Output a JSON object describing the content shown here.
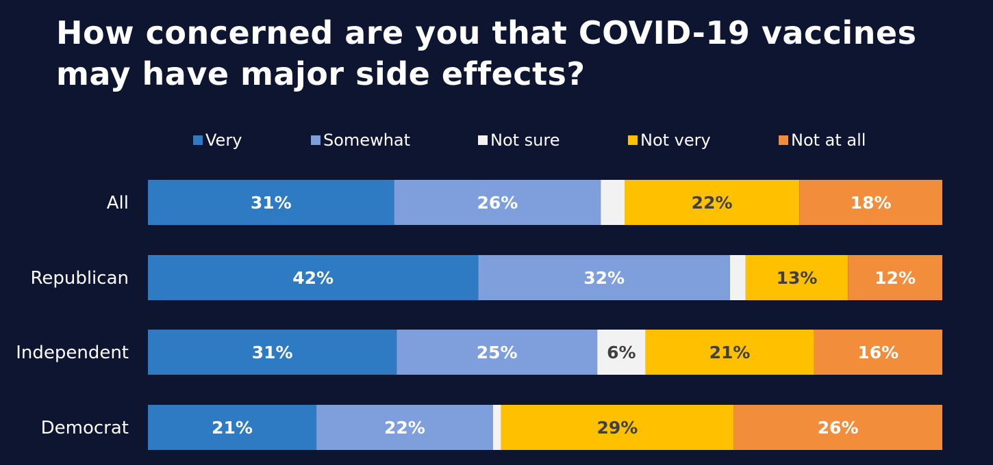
{
  "page": {
    "title_lines": [
      "How concerned are you that COVID-19 vaccines",
      "may have major side effects?"
    ]
  },
  "colors": {
    "background": "#0d1530",
    "Very": "#2e7bc4",
    "Somewhat": "#7e9fdc",
    "Not sure": "#f2f2f2",
    "Not very": "#ffc000",
    "Not at all": "#f28d3b",
    "label_light": "#ffffff",
    "label_dark": "#404040"
  },
  "chart_data": {
    "type": "bar",
    "orientation": "horizontal",
    "stacked": true,
    "normalized_100": true,
    "title": "How concerned are you that COVID-19 vaccines may have major side effects?",
    "categories": [
      "All",
      "Republican",
      "Independent",
      "Democrat"
    ],
    "series": [
      {
        "name": "Very",
        "values": [
          31,
          42,
          31,
          21
        ],
        "labels": [
          "31%",
          "42%",
          "31%",
          "21%"
        ]
      },
      {
        "name": "Somewhat",
        "values": [
          26,
          32,
          25,
          22
        ],
        "labels": [
          "26%",
          "32%",
          "25%",
          "22%"
        ]
      },
      {
        "name": "Not sure",
        "values": [
          3,
          2,
          6,
          1
        ],
        "labels": [
          "",
          "",
          "6%",
          ""
        ]
      },
      {
        "name": "Not very",
        "values": [
          22,
          13,
          21,
          29
        ],
        "labels": [
          "22%",
          "13%",
          "21%",
          "29%"
        ]
      },
      {
        "name": "Not at all",
        "values": [
          18,
          12,
          16,
          26
        ],
        "labels": [
          "18%",
          "12%",
          "16%",
          "26%"
        ]
      }
    ],
    "legend_position": "top",
    "grid": false,
    "xlabel": "",
    "ylabel": ""
  }
}
